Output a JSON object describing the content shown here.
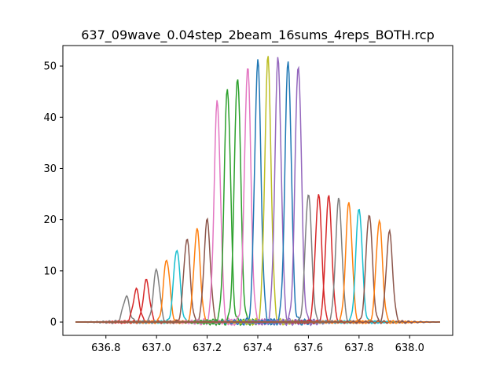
{
  "chart_data": {
    "type": "line",
    "title": "637_09wave_0.04step_2beam_16sums_4reps_BOTH.rcp",
    "xlabel": "",
    "ylabel": "",
    "xlim": [
      636.63,
      638.17
    ],
    "ylim": [
      -2.6,
      54
    ],
    "xticks": [
      636.8,
      637.0,
      637.2,
      637.4,
      637.6,
      637.8,
      638.0
    ],
    "xtick_labels": [
      "636.8",
      "637.0",
      "637.2",
      "637.4",
      "637.6",
      "637.8",
      "638.0"
    ],
    "yticks": [
      0,
      10,
      20,
      30,
      40,
      50
    ],
    "ytick_labels": [
      "0",
      "10",
      "20",
      "30",
      "40",
      "50"
    ],
    "x_range": [
      636.68,
      638.12
    ],
    "peak_width": 0.0125,
    "grid": false,
    "colors": [
      "#1f77b4",
      "#ff7f0e",
      "#2ca02c",
      "#d62728",
      "#9467bd",
      "#8c564b",
      "#e377c2",
      "#7f7f7f",
      "#bcbd22",
      "#17becf"
    ],
    "series": [
      {
        "center": 636.88,
        "peak": 5.0,
        "color": "#7f7f7f"
      },
      {
        "center": 636.92,
        "peak": 6.3,
        "color": "#d62728"
      },
      {
        "center": 636.96,
        "peak": 8.1,
        "color": "#d62728"
      },
      {
        "center": 637.0,
        "peak": 10.2,
        "color": "#7f7f7f"
      },
      {
        "center": 637.04,
        "peak": 12.3,
        "color": "#ff7f0e"
      },
      {
        "center": 637.08,
        "peak": 14.3,
        "color": "#17becf"
      },
      {
        "center": 637.12,
        "peak": 16.3,
        "color": "#8c564b"
      },
      {
        "center": 637.16,
        "peak": 18.1,
        "color": "#ff7f0e"
      },
      {
        "center": 637.2,
        "peak": 19.9,
        "color": "#8c564b"
      },
      {
        "center": 637.24,
        "peak": 43.0,
        "color": "#e377c2"
      },
      {
        "center": 637.28,
        "peak": 45.9,
        "color": "#2ca02c"
      },
      {
        "center": 637.32,
        "peak": 48.3,
        "color": "#2ca02c"
      },
      {
        "center": 637.36,
        "peak": 50.2,
        "color": "#e377c2"
      },
      {
        "center": 637.4,
        "peak": 51.0,
        "color": "#1f77b4"
      },
      {
        "center": 637.44,
        "peak": 51.4,
        "color": "#bcbd22"
      },
      {
        "center": 637.48,
        "peak": 51.3,
        "color": "#9467bd"
      },
      {
        "center": 637.52,
        "peak": 51.1,
        "color": "#1f77b4"
      },
      {
        "center": 637.56,
        "peak": 50.6,
        "color": "#9467bd"
      },
      {
        "center": 637.6,
        "peak": 25.2,
        "color": "#7f7f7f"
      },
      {
        "center": 637.64,
        "peak": 24.9,
        "color": "#d62728"
      },
      {
        "center": 637.68,
        "peak": 24.5,
        "color": "#d62728"
      },
      {
        "center": 637.72,
        "peak": 24.0,
        "color": "#7f7f7f"
      },
      {
        "center": 637.76,
        "peak": 23.4,
        "color": "#ff7f0e"
      },
      {
        "center": 637.8,
        "peak": 22.4,
        "color": "#17becf"
      },
      {
        "center": 637.84,
        "peak": 21.2,
        "color": "#8c564b"
      },
      {
        "center": 637.88,
        "peak": 19.8,
        "color": "#ff7f0e"
      },
      {
        "center": 637.92,
        "peak": 17.6,
        "color": "#8c564b"
      }
    ]
  }
}
